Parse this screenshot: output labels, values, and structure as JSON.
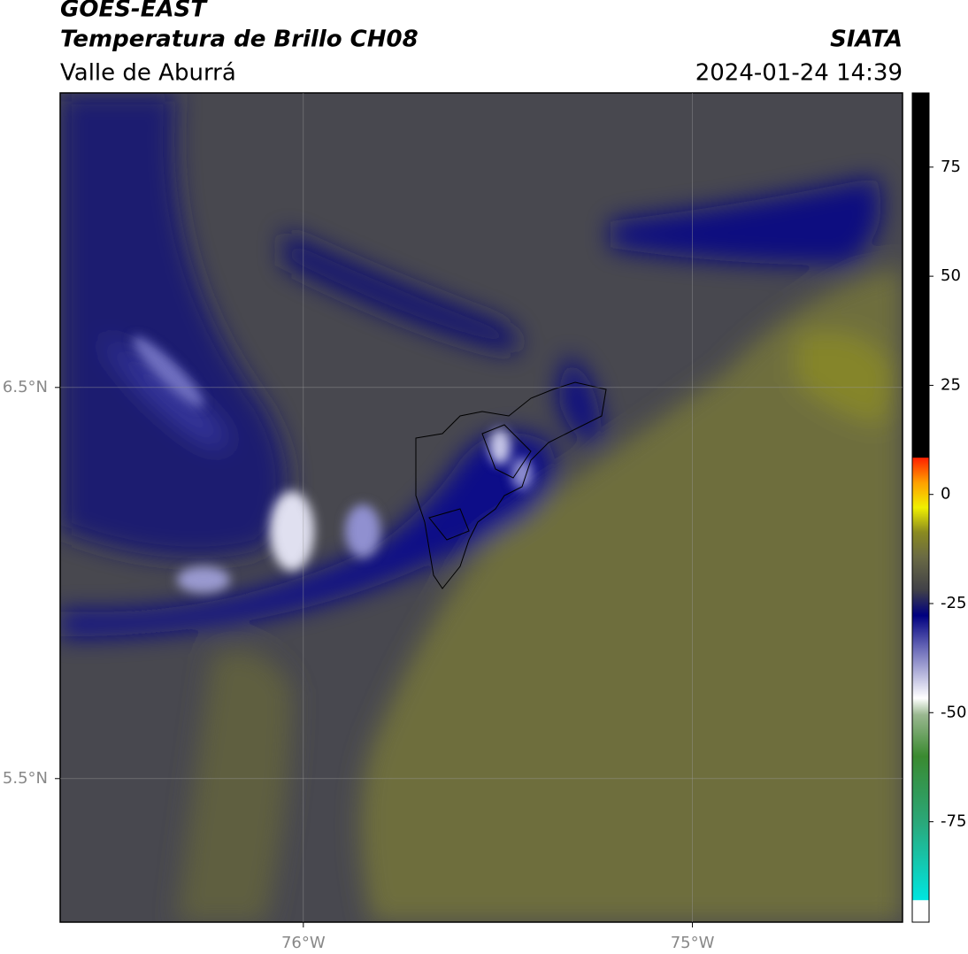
{
  "header": {
    "title": "GOES-EAST",
    "subtitle": "Temperatura de Brillo CH08",
    "region": "Valle de Aburrá",
    "source": "SIATA",
    "timestamp": "2024-01-24 14:39"
  },
  "map": {
    "xlim": [
      -76.625,
      -74.46
    ],
    "ylim": [
      5.133,
      7.253
    ],
    "xticks": [
      {
        "value": -76,
        "label": "76°W"
      },
      {
        "value": -75,
        "label": "75°W"
      }
    ],
    "yticks": [
      {
        "value": 6.5,
        "label": "6.5°N"
      },
      {
        "value": 5.5,
        "label": "5.5°N"
      }
    ]
  },
  "colorbar": {
    "lim": [
      -98,
      92
    ],
    "ticks": [
      -75,
      -50,
      -25,
      0,
      25,
      50,
      75
    ]
  }
}
